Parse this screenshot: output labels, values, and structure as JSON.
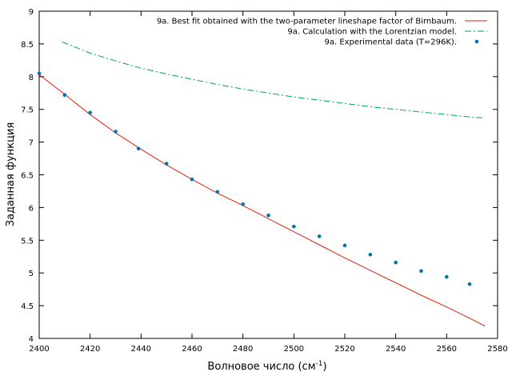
{
  "chart_data": {
    "type": "line",
    "title": "",
    "xlabel": "Волновое число (см",
    "xlabel_sup": "-1",
    "xlabel_close": ")",
    "ylabel": "Заданная функция",
    "xlim": [
      2400,
      2580
    ],
    "ylim": [
      4,
      9
    ],
    "xticks": [
      2400,
      2420,
      2440,
      2460,
      2480,
      2500,
      2520,
      2540,
      2560,
      2580
    ],
    "yticks": [
      4,
      4.5,
      5,
      5.5,
      6,
      6.5,
      7,
      7.5,
      8,
      8.5,
      9
    ],
    "legend_position": "top-right",
    "grid": false,
    "series": [
      {
        "name": "9a. Best fit obtained with the two-parameter lineshape factor of Birnbaum.",
        "style": "solid-line",
        "color": "#e51e10",
        "x": [
          2400,
          2410,
          2420,
          2430,
          2440,
          2450,
          2460,
          2470,
          2480,
          2490,
          2500,
          2510,
          2520,
          2530,
          2540,
          2550,
          2560,
          2570,
          2575
        ],
        "y": [
          8.03,
          7.73,
          7.42,
          7.14,
          6.89,
          6.65,
          6.43,
          6.22,
          6.03,
          5.83,
          5.63,
          5.43,
          5.23,
          5.04,
          4.85,
          4.66,
          4.48,
          4.29,
          4.19
        ]
      },
      {
        "name": "9a. Calculation with the Lorentzian model.",
        "style": "dash-dot-line",
        "color": "#009e73",
        "x": [
          2409,
          2420,
          2430,
          2440,
          2450,
          2460,
          2470,
          2480,
          2490,
          2500,
          2510,
          2520,
          2530,
          2540,
          2550,
          2560,
          2570,
          2574
        ],
        "y": [
          8.53,
          8.36,
          8.24,
          8.13,
          8.04,
          7.96,
          7.88,
          7.81,
          7.75,
          7.69,
          7.64,
          7.59,
          7.54,
          7.5,
          7.46,
          7.42,
          7.38,
          7.37
        ]
      },
      {
        "name": "9a. Experimental data (T=296K).",
        "style": "points",
        "color": "#0072b2",
        "x": [
          2400,
          2410,
          2420,
          2430,
          2439,
          2450,
          2460,
          2470,
          2480,
          2490,
          2500,
          2510,
          2520,
          2530,
          2540,
          2550,
          2560,
          2569
        ],
        "y": [
          8.05,
          7.72,
          7.45,
          7.16,
          6.9,
          6.67,
          6.43,
          6.24,
          6.05,
          5.88,
          5.71,
          5.56,
          5.42,
          5.28,
          5.16,
          5.03,
          4.94,
          4.83
        ]
      }
    ]
  }
}
